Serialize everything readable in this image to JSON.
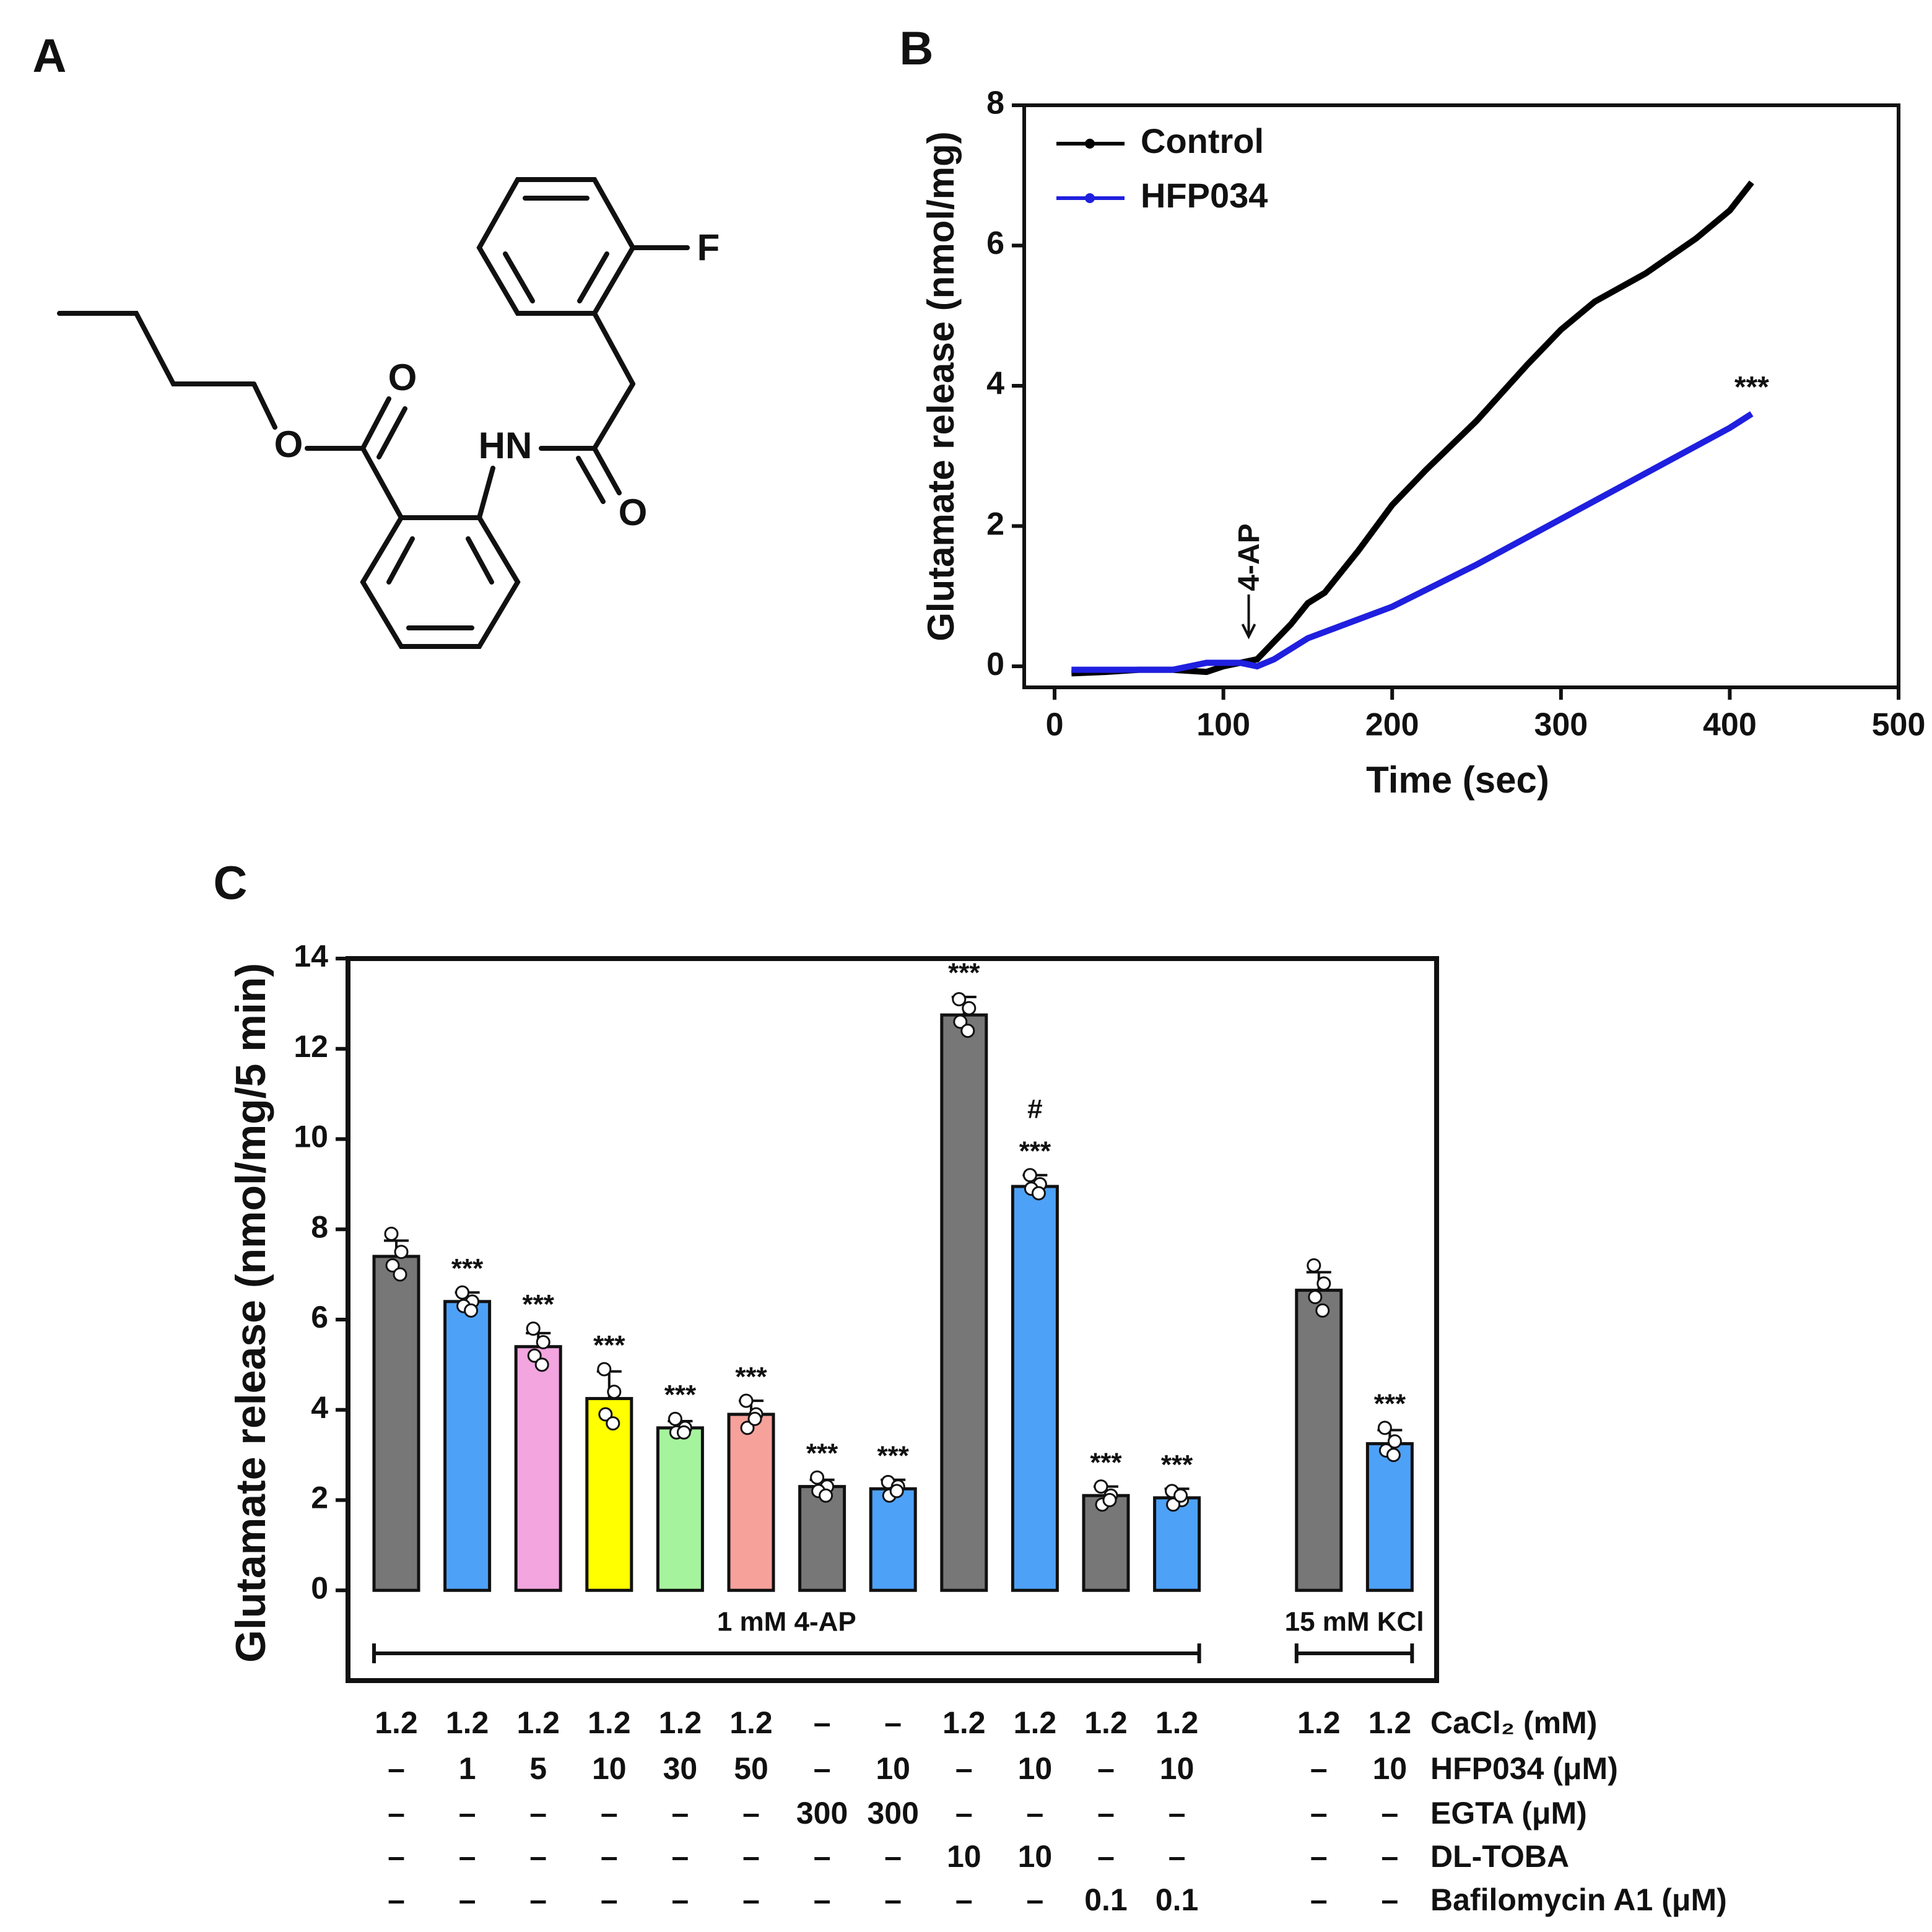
{
  "panels": [
    "A",
    "B",
    "C"
  ],
  "structure": {
    "atoms": [
      "F",
      "O",
      "HN",
      "O",
      "O"
    ]
  },
  "chart_data": [
    {
      "type": "line",
      "xlabel": "Time (sec)",
      "ylabel": "Glutamate release (nmol/mg)",
      "xlim": [
        -18,
        500
      ],
      "xticks": [
        0,
        100,
        200,
        300,
        400,
        500
      ],
      "ylim": [
        -0.3,
        8
      ],
      "yticks": [
        0,
        2,
        4,
        6,
        8
      ],
      "annotations": [
        "4-AP",
        "***"
      ],
      "series": [
        {
          "name": "Control",
          "color": "#000000",
          "x": [
            10,
            30,
            50,
            70,
            90,
            100,
            110,
            120,
            130,
            140,
            150,
            160,
            180,
            200,
            220,
            250,
            280,
            300,
            320,
            350,
            380,
            400,
            413
          ],
          "values": [
            -0.1,
            -0.08,
            -0.05,
            -0.05,
            -0.08,
            0.0,
            0.05,
            0.1,
            0.35,
            0.6,
            0.9,
            1.05,
            1.65,
            2.3,
            2.8,
            3.5,
            4.3,
            4.8,
            5.2,
            5.6,
            6.1,
            6.5,
            6.9
          ]
        },
        {
          "name": "HFP034",
          "color": "#1f1fe0",
          "x": [
            10,
            30,
            50,
            70,
            90,
            100,
            110,
            120,
            130,
            150,
            200,
            250,
            300,
            350,
            400,
            413
          ],
          "values": [
            -0.05,
            -0.05,
            -0.05,
            -0.05,
            0.05,
            0.05,
            0.05,
            0.0,
            0.1,
            0.4,
            0.85,
            1.45,
            2.1,
            2.75,
            3.4,
            3.6
          ]
        }
      ]
    },
    {
      "type": "bar",
      "ylabel": "Glutamate release (nmol/mg/5 min)",
      "ylim": [
        -2,
        14
      ],
      "yticks": [
        0,
        2,
        4,
        6,
        8,
        10,
        12,
        14
      ],
      "values": [
        7.4,
        6.4,
        5.4,
        4.25,
        3.6,
        3.9,
        2.3,
        2.25,
        12.75,
        8.95,
        2.1,
        2.05,
        6.65,
        3.25
      ],
      "errors": [
        0.35,
        0.2,
        0.3,
        0.6,
        0.15,
        0.3,
        0.15,
        0.2,
        0.4,
        0.25,
        0.2,
        0.2,
        0.4,
        0.3
      ],
      "points": [
        [
          7.9,
          7.5,
          7.2,
          7.0
        ],
        [
          6.6,
          6.4,
          6.3,
          6.2
        ],
        [
          5.8,
          5.5,
          5.2,
          5.0
        ],
        [
          4.9,
          4.4,
          3.9,
          3.7
        ],
        [
          3.8,
          3.6,
          3.5,
          3.5
        ],
        [
          4.2,
          3.9,
          3.6,
          3.8
        ],
        [
          2.5,
          2.3,
          2.2,
          2.1
        ],
        [
          2.4,
          2.3,
          2.1,
          2.2
        ],
        [
          13.1,
          12.9,
          12.6,
          12.4
        ],
        [
          9.2,
          9.0,
          8.9,
          8.8
        ],
        [
          2.3,
          2.1,
          1.9,
          2.0
        ],
        [
          2.2,
          2.0,
          1.9,
          2.1
        ],
        [
          7.2,
          6.8,
          6.5,
          6.2
        ],
        [
          3.6,
          3.3,
          3.1,
          3.0
        ]
      ],
      "colors": [
        "#777777",
        "#4da1f7",
        "#f2a5df",
        "#ffff00",
        "#a6f39d",
        "#f7a19b",
        "#777777",
        "#4da1f7",
        "#777777",
        "#4da1f7",
        "#777777",
        "#4da1f7",
        "#777777",
        "#4da1f7"
      ],
      "sig_labels": [
        null,
        "***",
        "***",
        "***",
        "***",
        "***",
        "***",
        "***",
        "***",
        "***",
        "***",
        "***",
        null,
        "***"
      ],
      "sig_labels_2": [
        null,
        null,
        null,
        null,
        null,
        null,
        null,
        null,
        null,
        "#",
        null,
        null,
        null,
        null
      ],
      "groups": [
        {
          "label": "1 mM 4-AP",
          "size": 12
        },
        {
          "label": "15 mM KCl",
          "size": 2
        }
      ],
      "conditions": [
        {
          "label": "CaCl₂ (mM)",
          "cells": [
            "1.2",
            "1.2",
            "1.2",
            "1.2",
            "1.2",
            "1.2",
            "–",
            "–",
            "1.2",
            "1.2",
            "1.2",
            "1.2",
            "1.2",
            "1.2"
          ]
        },
        {
          "label": "HFP034 (μM)",
          "cells": [
            "–",
            "1",
            "5",
            "10",
            "30",
            "50",
            "–",
            "10",
            "–",
            "10",
            "–",
            "10",
            "–",
            "10"
          ]
        },
        {
          "label": "EGTA (μM)",
          "cells": [
            "–",
            "–",
            "–",
            "–",
            "–",
            "–",
            "300",
            "300",
            "–",
            "–",
            "–",
            "–",
            "–",
            "–"
          ]
        },
        {
          "label": "DL-TOBA",
          "cells": [
            "–",
            "–",
            "–",
            "–",
            "–",
            "–",
            "–",
            "–",
            "10",
            "10",
            "–",
            "–",
            "–",
            "–"
          ]
        },
        {
          "label": "Bafilomycin A1 (μM)",
          "cells": [
            "–",
            "–",
            "–",
            "–",
            "–",
            "–",
            "–",
            "–",
            "–",
            "–",
            "0.1",
            "0.1",
            "–",
            "–"
          ]
        }
      ]
    }
  ]
}
